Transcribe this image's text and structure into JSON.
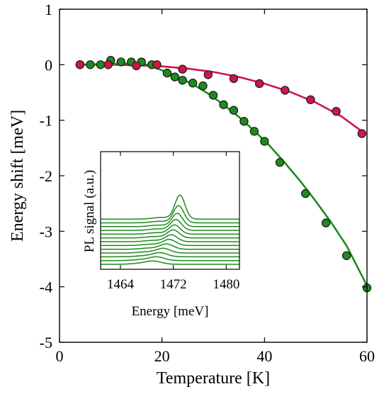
{
  "chart_data": [
    {
      "type": "scatter",
      "xlabel": "Temperature [K]",
      "ylabel": "Energy shift [meV]",
      "xlim": [
        0,
        60
      ],
      "ylim": [
        -5,
        1
      ],
      "x_ticks": [
        "0",
        "20",
        "40",
        "60"
      ],
      "y_ticks": [
        "1",
        "0",
        "-1",
        "-2",
        "-3",
        "-4",
        "-5"
      ],
      "x_tick_values": [
        0,
        20,
        40,
        60
      ],
      "y_tick_values": [
        1,
        0,
        -1,
        -2,
        -3,
        -4,
        -5
      ],
      "grid": false,
      "series": [
        {
          "color": "#d0154a",
          "marker": "circle",
          "points": [
            [
              4,
              0.0
            ],
            [
              9.5,
              0.0
            ],
            [
              15,
              -0.02
            ],
            [
              19,
              0.0
            ],
            [
              24,
              -0.08
            ],
            [
              29,
              -0.18
            ],
            [
              34,
              -0.25
            ],
            [
              39,
              -0.34
            ],
            [
              44,
              -0.46
            ],
            [
              49,
              -0.63
            ],
            [
              54,
              -0.84
            ],
            [
              59,
              -1.24
            ]
          ],
          "fit": [
            [
              4,
              0.0
            ],
            [
              10,
              0.0
            ],
            [
              15,
              -0.01
            ],
            [
              20,
              -0.03
            ],
            [
              25,
              -0.07
            ],
            [
              30,
              -0.13
            ],
            [
              35,
              -0.22
            ],
            [
              40,
              -0.34
            ],
            [
              45,
              -0.49
            ],
            [
              50,
              -0.68
            ],
            [
              55,
              -0.93
            ],
            [
              59,
              -1.2
            ]
          ]
        },
        {
          "color": "#1e8a1e",
          "marker": "circle",
          "points": [
            [
              4,
              0.0
            ],
            [
              6,
              0.0
            ],
            [
              8,
              0.0
            ],
            [
              10,
              0.08
            ],
            [
              12,
              0.05
            ],
            [
              14,
              0.05
            ],
            [
              16,
              0.05
            ],
            [
              18,
              0.0
            ],
            [
              21,
              -0.15
            ],
            [
              22.5,
              -0.22
            ],
            [
              24,
              -0.28
            ],
            [
              26,
              -0.33
            ],
            [
              28,
              -0.38
            ],
            [
              30,
              -0.55
            ],
            [
              32,
              -0.72
            ],
            [
              34,
              -0.82
            ],
            [
              36,
              -1.02
            ],
            [
              38,
              -1.2
            ],
            [
              40,
              -1.38
            ],
            [
              43,
              -1.76
            ],
            [
              48,
              -2.32
            ],
            [
              52,
              -2.85
            ],
            [
              56,
              -3.44
            ],
            [
              60,
              -4.02
            ]
          ],
          "fit": [
            [
              4,
              0.0
            ],
            [
              8,
              0.01
            ],
            [
              12,
              0.02
            ],
            [
              15,
              0.02
            ],
            [
              17,
              0.0
            ],
            [
              20,
              -0.1
            ],
            [
              23,
              -0.22
            ],
            [
              26,
              -0.35
            ],
            [
              29,
              -0.52
            ],
            [
              32,
              -0.72
            ],
            [
              35,
              -0.94
            ],
            [
              38,
              -1.19
            ],
            [
              41,
              -1.46
            ],
            [
              44,
              -1.77
            ],
            [
              47,
              -2.1
            ],
            [
              50,
              -2.46
            ],
            [
              53,
              -2.84
            ],
            [
              56,
              -3.26
            ],
            [
              60,
              -3.98
            ]
          ]
        }
      ]
    },
    {
      "type": "line",
      "xlabel": "Energy [meV]",
      "ylabel": "PL signal (a.u.)",
      "xlim": [
        1461,
        1482
      ],
      "x_ticks": [
        "1464",
        "1472",
        "1480"
      ],
      "x_tick_values": [
        1464,
        1472,
        1480
      ],
      "series_color": "#1e8a1e",
      "traces": [
        {
          "offset": 0.0,
          "peak_pos": 1469.0,
          "peak_amp": 0.8,
          "shoulder_pos": 1466.8,
          "shoulder_amp": 0.2,
          "width": 1.2
        },
        {
          "offset": 0.95,
          "peak_pos": 1469.5,
          "peak_amp": 0.9,
          "shoulder_pos": 1467.2,
          "shoulder_amp": 0.22,
          "width": 1.15
        },
        {
          "offset": 1.9,
          "peak_pos": 1470.0,
          "peak_amp": 1.0,
          "shoulder_pos": 1467.6,
          "shoulder_amp": 0.25,
          "width": 1.1
        },
        {
          "offset": 2.85,
          "peak_pos": 1470.5,
          "peak_amp": 1.15,
          "shoulder_pos": 1468.0,
          "shoulder_amp": 0.28,
          "width": 1.05
        },
        {
          "offset": 3.8,
          "peak_pos": 1471.0,
          "peak_amp": 1.3,
          "shoulder_pos": 1468.4,
          "shoulder_amp": 0.3,
          "width": 1.0
        },
        {
          "offset": 4.75,
          "peak_pos": 1471.4,
          "peak_amp": 1.5,
          "shoulder_pos": 1468.7,
          "shoulder_amp": 0.32,
          "width": 0.95
        },
        {
          "offset": 5.7,
          "peak_pos": 1471.7,
          "peak_amp": 1.7,
          "shoulder_pos": 1469.0,
          "shoulder_amp": 0.34,
          "width": 0.9
        },
        {
          "offset": 6.65,
          "peak_pos": 1472.0,
          "peak_amp": 2.0,
          "shoulder_pos": 1469.2,
          "shoulder_amp": 0.35,
          "width": 0.88
        },
        {
          "offset": 7.6,
          "peak_pos": 1472.2,
          "peak_amp": 2.3,
          "shoulder_pos": 1469.4,
          "shoulder_amp": 0.36,
          "width": 0.85
        },
        {
          "offset": 8.55,
          "peak_pos": 1472.4,
          "peak_amp": 2.7,
          "shoulder_pos": 1469.6,
          "shoulder_amp": 0.37,
          "width": 0.83
        },
        {
          "offset": 9.5,
          "peak_pos": 1472.6,
          "peak_amp": 3.3,
          "shoulder_pos": 1469.8,
          "shoulder_amp": 0.38,
          "width": 0.8
        },
        {
          "offset": 10.45,
          "peak_pos": 1472.8,
          "peak_amp": 4.3,
          "shoulder_pos": 1470.0,
          "shoulder_amp": 0.4,
          "width": 0.78
        },
        {
          "offset": 11.4,
          "peak_pos": 1473.0,
          "peak_amp": 6.0,
          "shoulder_pos": 1470.2,
          "shoulder_amp": 0.42,
          "width": 0.76
        }
      ]
    }
  ]
}
